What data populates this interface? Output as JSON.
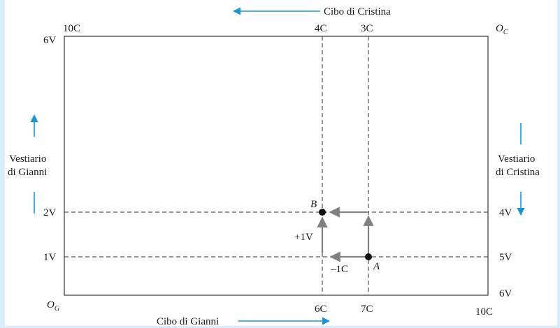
{
  "top_axis_title": "Cibo di Cristina",
  "bottom_axis_title": "Cibo di Gianni",
  "left_axis_title": [
    "Vestiario",
    "di Gianni"
  ],
  "right_axis_title": [
    "Vestiario",
    "di Cristina"
  ],
  "origin_gianni": {
    "base": "O",
    "sub": "G"
  },
  "origin_cristina": {
    "base": "O",
    "sub": "C"
  },
  "top_labels": {
    "left": "10C",
    "c4": "4C",
    "c3": "3C"
  },
  "bottom_labels": {
    "c6": "6C",
    "c7": "7C",
    "right": "10C"
  },
  "left_labels": {
    "v6": "6V",
    "v2": "2V",
    "v1": "1V"
  },
  "right_labels": {
    "v4": "4V",
    "v5": "5V",
    "v6": "6V"
  },
  "points": {
    "A": "A",
    "B": "B"
  },
  "moves": {
    "cloth": "+1V",
    "food": "–1C"
  },
  "colors": {
    "accent": "#1a96d6",
    "line": "#555555",
    "arrow": "#808080",
    "frame": "#d8ecfb"
  }
}
